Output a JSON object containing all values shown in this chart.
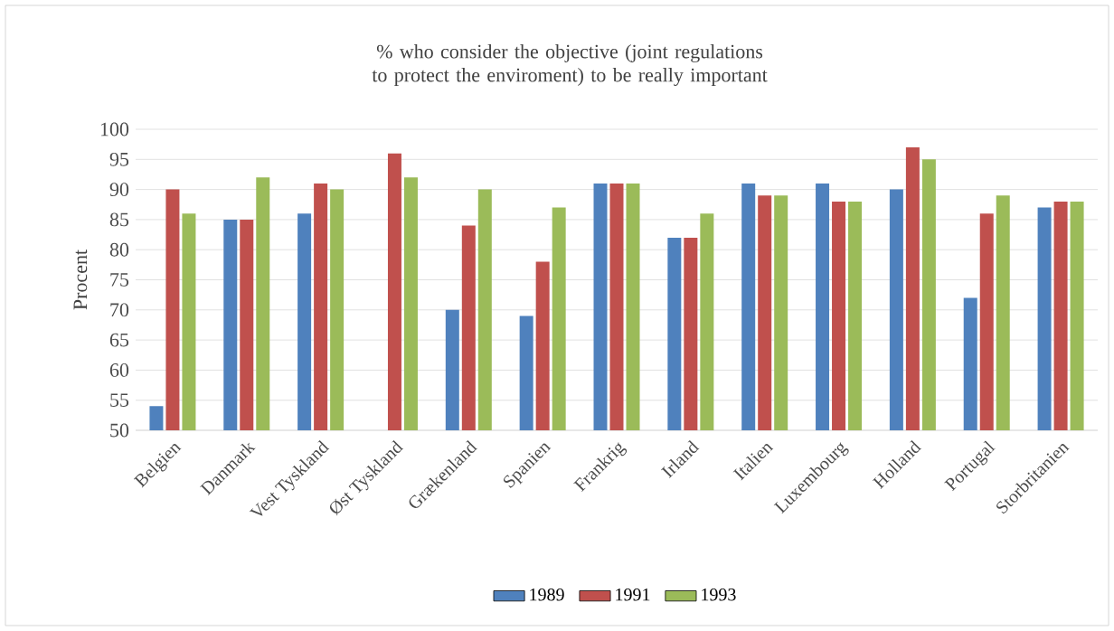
{
  "chart_data": {
    "type": "bar",
    "title": "% who consider  the objective  (joint regulations  to protect the enviroment)  to be really important",
    "ylabel": "Procent",
    "categories": [
      "Belgien",
      "Danmark",
      "Vest Tyskland",
      "Øst Tyskland",
      "Grækenland",
      "Spanien",
      "Frankrig",
      "Irland",
      "Italien",
      "Luxembourg",
      "Holland",
      "Portugal",
      "Storbritanien"
    ],
    "series": [
      {
        "name": "1989",
        "color": "#4f81bd",
        "values": [
          54,
          85,
          86,
          null,
          70,
          69,
          91,
          82,
          91,
          91,
          90,
          72,
          87
        ]
      },
      {
        "name": "1991",
        "color": "#c0504d",
        "values": [
          90,
          85,
          91,
          96,
          84,
          78,
          91,
          82,
          89,
          88,
          97,
          86,
          88
        ]
      },
      {
        "name": "1993",
        "color": "#9bbb59",
        "values": [
          86,
          92,
          90,
          92,
          90,
          87,
          91,
          86,
          89,
          88,
          95,
          89,
          88
        ]
      }
    ],
    "ylim": [
      50,
      100
    ],
    "yticks": [
      50,
      55,
      60,
      65,
      70,
      75,
      80,
      85,
      90,
      95,
      100
    ],
    "grid": "y",
    "legend": "bottom"
  }
}
